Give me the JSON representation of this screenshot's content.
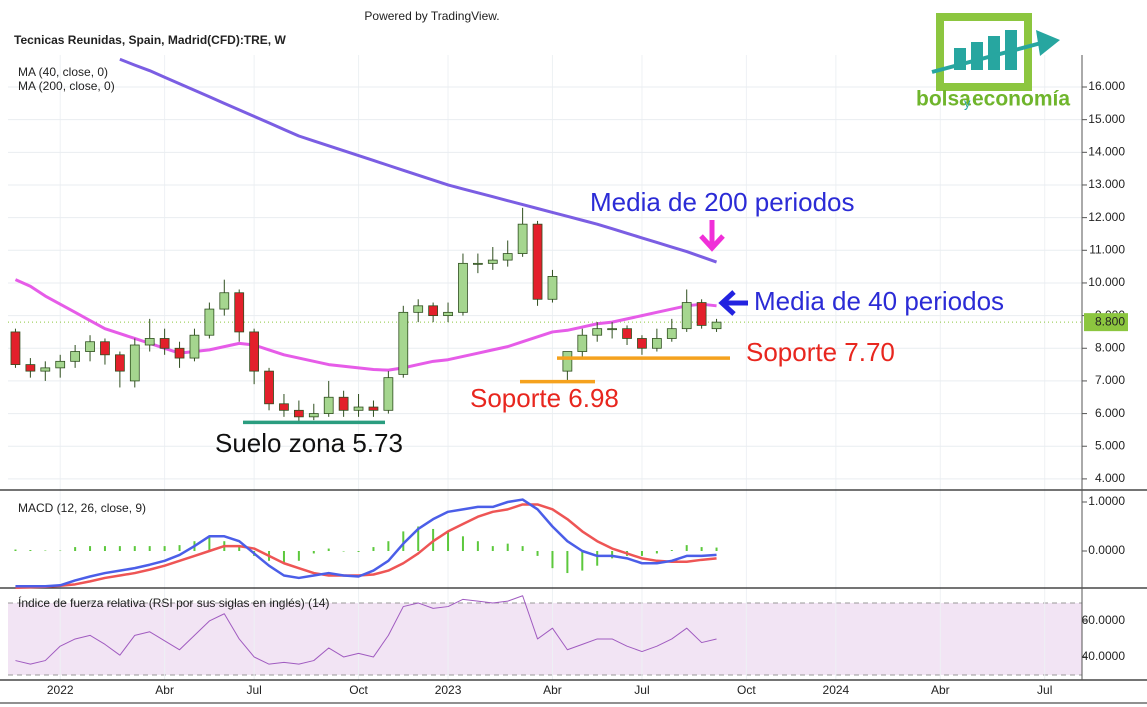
{
  "header": {
    "powered_by": "Powered by TradingView."
  },
  "logo": {
    "bolsa": "bolsa",
    "y": "y",
    "economia": "economía"
  },
  "chart_data": [
    {
      "type": "candlestick",
      "title": "Tecnicas Reunidas, Spain, Madrid(CFD):TRE, W",
      "categories": [
        null,
        null,
        null,
        "2022",
        null,
        null,
        null,
        null,
        null,
        null,
        "Abr",
        null,
        null,
        null,
        null,
        null,
        "Jul",
        null,
        null,
        null,
        null,
        null,
        null,
        "Oct",
        null,
        null,
        null,
        null,
        null,
        "2023",
        null,
        null,
        null,
        null,
        null,
        null,
        "Abr",
        null,
        null,
        null,
        null,
        null,
        "Jul",
        null,
        null,
        null,
        null,
        null,
        null,
        "Oct",
        null,
        null,
        null,
        null,
        null,
        "2024",
        null,
        null,
        null,
        null,
        null,
        null,
        "Abr",
        null,
        null,
        null,
        null,
        null,
        null,
        "Jul",
        null,
        null
      ],
      "open": [
        8.5,
        7.5,
        7.3,
        7.4,
        7.6,
        7.9,
        8.2,
        7.8,
        7.0,
        8.1,
        8.3,
        8.0,
        7.7,
        8.4,
        9.2,
        9.7,
        8.5,
        7.3,
        6.3,
        6.1,
        5.9,
        6.0,
        6.5,
        6.1,
        6.2,
        6.1,
        7.2,
        9.1,
        9.3,
        9.0,
        9.1,
        10.6,
        10.6,
        10.7,
        10.9,
        11.8,
        9.5,
        7.3,
        7.9,
        8.4,
        8.6,
        8.6,
        8.3,
        8.0,
        8.3,
        8.6,
        9.4,
        8.6,
        null,
        null,
        null,
        null,
        null,
        null,
        null,
        null,
        null,
        null,
        null,
        null,
        null,
        null,
        null,
        null,
        null,
        null,
        null,
        null,
        null,
        null,
        null,
        null
      ],
      "high": [
        8.6,
        7.7,
        7.6,
        7.8,
        8.1,
        8.4,
        8.3,
        7.9,
        8.3,
        8.9,
        8.6,
        8.2,
        8.6,
        9.4,
        10.1,
        9.8,
        8.6,
        7.4,
        6.6,
        6.4,
        6.3,
        7.0,
        6.7,
        6.6,
        6.4,
        7.3,
        9.3,
        9.5,
        9.4,
        9.4,
        10.9,
        10.9,
        11.1,
        11.3,
        12.3,
        11.9,
        10.4,
        7.9,
        8.6,
        8.8,
        8.8,
        8.7,
        8.4,
        8.6,
        8.9,
        9.8,
        9.5,
        8.9,
        null,
        null,
        null,
        null,
        null,
        null,
        null,
        null,
        null,
        null,
        null,
        null,
        null,
        null,
        null,
        null,
        null,
        null,
        null,
        null,
        null,
        null,
        null,
        null
      ],
      "low": [
        7.4,
        7.1,
        7.0,
        7.1,
        7.4,
        7.6,
        7.5,
        6.8,
        6.8,
        7.9,
        7.8,
        7.4,
        7.6,
        8.3,
        9.0,
        8.2,
        6.9,
        6.1,
        5.9,
        5.73,
        5.8,
        5.9,
        5.9,
        5.9,
        5.9,
        6.0,
        7.1,
        8.8,
        8.8,
        8.8,
        9.0,
        10.3,
        10.4,
        10.5,
        10.8,
        9.3,
        9.4,
        6.98,
        7.7,
        8.2,
        8.3,
        8.1,
        7.8,
        7.9,
        8.2,
        8.5,
        8.6,
        8.5,
        null,
        null,
        null,
        null,
        null,
        null,
        null,
        null,
        null,
        null,
        null,
        null,
        null,
        null,
        null,
        null,
        null,
        null,
        null,
        null,
        null,
        null,
        null,
        null
      ],
      "close": [
        7.5,
        7.3,
        7.4,
        7.6,
        7.9,
        8.2,
        7.8,
        7.3,
        8.1,
        8.3,
        8.0,
        7.7,
        8.4,
        9.2,
        9.7,
        8.5,
        7.3,
        6.3,
        6.1,
        5.9,
        6.0,
        6.5,
        6.1,
        6.2,
        6.1,
        7.1,
        9.1,
        9.3,
        9.0,
        9.1,
        10.6,
        10.6,
        10.7,
        10.9,
        11.8,
        9.5,
        10.2,
        7.9,
        8.4,
        8.6,
        8.6,
        8.3,
        8.0,
        8.3,
        8.6,
        9.4,
        8.7,
        8.8,
        null,
        null,
        null,
        null,
        null,
        null,
        null,
        null,
        null,
        null,
        null,
        null,
        null,
        null,
        null,
        null,
        null,
        null,
        null,
        null,
        null,
        null,
        null,
        null
      ],
      "up_color": "#a5d68f",
      "down_color": "#e3202b",
      "outline_color": "#2f4f1f",
      "series": [
        {
          "name": "MA (40, close, 0)",
          "color": "#e65ce8",
          "values": [
            10.1,
            9.9,
            9.6,
            9.35,
            9.1,
            8.85,
            8.6,
            8.45,
            8.3,
            8.15,
            8.0,
            7.85,
            7.9,
            7.95,
            8.05,
            8.15,
            8.1,
            7.95,
            7.8,
            7.7,
            7.6,
            7.5,
            7.45,
            7.4,
            7.35,
            7.33,
            7.4,
            7.5,
            7.6,
            7.65,
            7.75,
            7.85,
            7.95,
            8.05,
            8.2,
            8.35,
            8.5,
            8.55,
            8.65,
            8.75,
            8.8,
            8.9,
            9.0,
            9.1,
            9.2,
            9.3,
            9.35,
            9.3,
            null,
            null,
            null,
            null,
            null,
            null,
            null,
            null,
            null,
            null,
            null,
            null,
            null,
            null,
            null,
            null,
            null,
            null,
            null,
            null,
            null,
            null,
            null,
            null
          ]
        },
        {
          "name": "MA (200, close, 0)",
          "color": "#7b5ee3",
          "values": [
            null,
            null,
            null,
            null,
            null,
            null,
            null,
            16.85,
            16.67,
            16.5,
            16.3,
            16.1,
            15.9,
            15.7,
            15.5,
            15.3,
            15.1,
            14.9,
            14.7,
            14.5,
            14.35,
            14.2,
            14.05,
            13.9,
            13.75,
            13.6,
            13.45,
            13.3,
            13.15,
            13.0,
            12.88,
            12.76,
            12.64,
            12.52,
            12.4,
            12.28,
            12.16,
            12.04,
            11.92,
            11.8,
            11.66,
            11.52,
            11.38,
            11.24,
            11.1,
            10.96,
            10.8,
            10.64,
            null,
            null,
            null,
            null,
            null,
            null,
            null,
            null,
            null,
            null,
            null,
            null,
            null,
            null,
            null,
            null,
            null,
            null,
            null,
            null,
            null,
            null,
            null,
            null
          ]
        }
      ],
      "ylim": [
        3.66,
        16.98
      ],
      "yticks": [
        {
          "value": 4,
          "label": "4.000"
        },
        {
          "value": 5,
          "label": "5.000"
        },
        {
          "value": 6,
          "label": "6.000"
        },
        {
          "value": 7,
          "label": "7.000"
        },
        {
          "value": 8,
          "label": "8.000"
        },
        {
          "value": 9,
          "label": "9.000"
        },
        {
          "value": 10,
          "label": "10.000"
        },
        {
          "value": 11,
          "label": "11.000"
        },
        {
          "value": 12,
          "label": "12.000"
        },
        {
          "value": 13,
          "label": "13.000"
        },
        {
          "value": 14,
          "label": "14.000"
        },
        {
          "value": 15,
          "label": "15.000"
        },
        {
          "value": 16,
          "label": "16.000"
        }
      ],
      "grid": true,
      "last_price": {
        "value": 8.8,
        "label": "8.800",
        "color": "#8cc63f"
      },
      "annotations": [
        {
          "text": "Media de 200 periodos",
          "color": "#2b2bd6"
        },
        {
          "text": "Media de 40 periodos",
          "color": "#2b2bd6"
        },
        {
          "text": "Soporte 7.70",
          "color": "#e8261e",
          "value": 7.7,
          "line_color": "#f5a21e"
        },
        {
          "text": "Soporte 6.98",
          "color": "#e8261e",
          "value": 6.98,
          "line_color": "#f5a21e"
        },
        {
          "text": "Suelo zona 5.73",
          "color": "#111111",
          "value": 5.73,
          "line_color": "#2a9d7f"
        }
      ]
    },
    {
      "type": "macd",
      "title": "MACD (12, 26, close, 9)",
      "ylim": [
        -0.755,
        1.204
      ],
      "yticks": [
        {
          "value": 0,
          "label": "0.0000"
        },
        {
          "value": 1,
          "label": "1.0000"
        }
      ],
      "series": [
        {
          "style": "bar",
          "color": "#5cc83c",
          "values": [
            0.03,
            0.02,
            0.01,
            0.01,
            0.08,
            0.1,
            0.1,
            0.1,
            0.1,
            0.1,
            0.1,
            0.12,
            0.2,
            0.3,
            0.2,
            0.1,
            -0.1,
            -0.2,
            -0.25,
            -0.2,
            -0.05,
            0.05,
            0.0,
            -0.02,
            0.08,
            0.2,
            0.4,
            0.5,
            0.45,
            0.4,
            0.3,
            0.2,
            0.1,
            0.15,
            0.1,
            -0.1,
            -0.35,
            -0.45,
            -0.4,
            -0.3,
            -0.15,
            -0.1,
            -0.1,
            -0.05,
            0.02,
            0.12,
            0.08,
            0.07,
            null,
            null,
            null,
            null,
            null,
            null,
            null,
            null,
            null,
            null,
            null,
            null,
            null,
            null,
            null,
            null,
            null,
            null,
            null,
            null,
            null,
            null,
            null,
            null
          ]
        },
        {
          "style": "line",
          "color": "#ee5555",
          "values": [
            -0.75,
            -0.74,
            -0.73,
            -0.71,
            -0.68,
            -0.62,
            -0.55,
            -0.5,
            -0.45,
            -0.38,
            -0.3,
            -0.2,
            -0.1,
            0.0,
            0.1,
            0.1,
            0.05,
            -0.1,
            -0.25,
            -0.35,
            -0.45,
            -0.5,
            -0.5,
            -0.5,
            -0.48,
            -0.4,
            -0.25,
            -0.05,
            0.2,
            0.4,
            0.55,
            0.7,
            0.8,
            0.85,
            0.95,
            0.95,
            0.85,
            0.65,
            0.4,
            0.2,
            0.05,
            -0.05,
            -0.15,
            -0.2,
            -0.22,
            -0.22,
            -0.18,
            -0.15,
            null,
            null,
            null,
            null,
            null,
            null,
            null,
            null,
            null,
            null,
            null,
            null,
            null,
            null,
            null,
            null,
            null,
            null,
            null,
            null,
            null,
            null,
            null,
            null
          ]
        },
        {
          "style": "line",
          "color": "#4b5ee8",
          "values": [
            -0.72,
            -0.72,
            -0.72,
            -0.7,
            -0.6,
            -0.52,
            -0.45,
            -0.4,
            -0.35,
            -0.28,
            -0.2,
            -0.08,
            0.1,
            0.3,
            0.3,
            0.2,
            -0.05,
            -0.3,
            -0.5,
            -0.55,
            -0.5,
            -0.45,
            -0.5,
            -0.52,
            -0.4,
            -0.2,
            0.15,
            0.45,
            0.65,
            0.8,
            0.85,
            0.9,
            0.9,
            1.0,
            1.05,
            0.85,
            0.5,
            0.2,
            0.0,
            -0.1,
            -0.1,
            -0.15,
            -0.25,
            -0.25,
            -0.2,
            -0.1,
            -0.1,
            -0.08,
            null,
            null,
            null,
            null,
            null,
            null,
            null,
            null,
            null,
            null,
            null,
            null,
            null,
            null,
            null,
            null,
            null,
            null,
            null,
            null,
            null,
            null,
            null,
            null
          ]
        }
      ]
    },
    {
      "type": "line",
      "title": "Índice de fuerza relativa (RSI por sus siglas en inglés) (14)",
      "ylim": [
        27.2,
        77.2
      ],
      "yticks": [
        {
          "value": 40,
          "label": "40.0000"
        },
        {
          "value": 60,
          "label": "60.0000"
        }
      ],
      "bands": [
        30,
        70
      ],
      "band_color": "#f2e4f4",
      "color": "#a05bc0",
      "values": [
        38,
        36,
        38,
        46,
        50,
        52,
        47,
        41,
        52,
        54,
        49,
        44,
        52,
        60,
        64,
        50,
        40,
        36,
        37,
        36,
        38,
        45,
        40,
        42,
        40,
        52,
        68,
        70,
        67,
        68,
        72,
        71,
        70,
        71,
        74,
        50,
        56,
        44,
        47,
        50,
        50,
        46,
        43,
        46,
        50,
        56,
        48,
        50,
        null,
        null,
        null,
        null,
        null,
        null,
        null,
        null,
        null,
        null,
        null,
        null,
        null,
        null,
        null,
        null,
        null,
        null,
        null,
        null,
        null,
        null,
        null,
        null
      ]
    }
  ]
}
